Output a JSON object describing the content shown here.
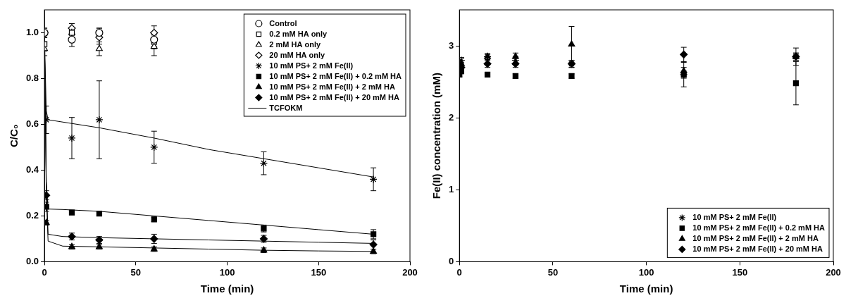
{
  "chart_data": [
    {
      "type": "scatter",
      "xlabel": "Time (min)",
      "ylabel": "C/C₀",
      "xlim": [
        0,
        200
      ],
      "xticks": [
        0,
        50,
        100,
        150,
        200
      ],
      "ylim": [
        0,
        1.1
      ],
      "yticks": [
        {
          "value": 0,
          "label": "0.0"
        },
        {
          "value": 0.2,
          "label": "0.2"
        },
        {
          "value": 0.4,
          "label": "0.4"
        },
        {
          "value": 0.6,
          "label": "0.6"
        },
        {
          "value": 0.8,
          "label": "0.8"
        },
        {
          "value": 1.0,
          "label": "1.0"
        }
      ],
      "grid": false,
      "legend": "upper right",
      "series": [
        {
          "name": "Control",
          "color": "#000000",
          "marker": "circle-open",
          "x": [
            0,
            15,
            30,
            60
          ],
          "values": [
            1.0,
            0.97,
            1.0,
            0.97
          ],
          "errors": [
            0.02,
            0.03,
            0.02,
            0.03
          ]
        },
        {
          "name": "0.2 mM HA only",
          "color": "#000000",
          "marker": "square-open",
          "x": [
            0,
            15,
            30,
            60
          ],
          "values": [
            0.95,
            1.0,
            1.0,
            0.96
          ],
          "errors": [
            0.03,
            0.02,
            0.02,
            0.03
          ]
        },
        {
          "name": "2 mM HA only",
          "color": "#000000",
          "marker": "triangle-open",
          "x": [
            0,
            15,
            30,
            60
          ],
          "values": [
            0.93,
            1.0,
            0.93,
            0.94
          ],
          "errors": [
            0.03,
            0.02,
            0.03,
            0.04
          ]
        },
        {
          "name": "20 mM HA only",
          "color": "#000000",
          "marker": "diamond-open",
          "x": [
            0,
            15,
            30,
            60
          ],
          "values": [
            1.0,
            1.02,
            0.98,
            1.0
          ],
          "errors": [
            0.02,
            0.02,
            0.03,
            0.03
          ]
        },
        {
          "name": "10 mM PS+ 2 mM Fe(II)",
          "color": "#000000",
          "marker": "star",
          "x": [
            0,
            1,
            15,
            30,
            60,
            120,
            180
          ],
          "values": [
            1.0,
            0.62,
            0.54,
            0.62,
            0.5,
            0.43,
            0.36
          ],
          "errors": [
            0.0,
            0.06,
            0.09,
            0.17,
            0.07,
            0.05,
            0.05
          ]
        },
        {
          "name": "10 mM PS+ 2 mM Fe(II) + 0.2 mM HA",
          "color": "#000000",
          "marker": "square",
          "x": [
            0,
            1,
            15,
            30,
            60,
            120,
            180
          ],
          "values": [
            1.0,
            0.24,
            0.215,
            0.21,
            0.185,
            0.145,
            0.12
          ],
          "errors": [
            0.0,
            0.02,
            0.01,
            0.01,
            0.01,
            0.015,
            0.02
          ]
        },
        {
          "name": "10 mM PS+ 2 mM Fe(II) + 2 mM HA",
          "color": "#000000",
          "marker": "triangle",
          "x": [
            0,
            1,
            15,
            30,
            60,
            120,
            180
          ],
          "values": [
            1.0,
            0.17,
            0.065,
            0.065,
            0.055,
            0.05,
            0.045
          ],
          "errors": [
            0.0,
            0.01,
            0.01,
            0.01,
            0.01,
            0.01,
            0.01
          ]
        },
        {
          "name": "10 mM PS+ 2 mM Fe(II) + 20 mM HA",
          "color": "#000000",
          "marker": "diamond",
          "x": [
            0,
            1,
            15,
            30,
            60,
            120,
            180
          ],
          "values": [
            1.0,
            0.29,
            0.11,
            0.095,
            0.1,
            0.1,
            0.075
          ],
          "errors": [
            0.0,
            0.02,
            0.015,
            0.015,
            0.02,
            0.015,
            0.02
          ]
        },
        {
          "name": "TCFOKM",
          "type": "line",
          "color": "#000000",
          "line_style": "solid",
          "x": [
            0,
            1,
            2,
            10,
            30,
            60,
            90,
            120,
            150,
            180,
            null,
            0,
            1,
            2,
            10,
            30,
            60,
            90,
            120,
            150,
            180,
            null,
            0,
            1,
            2,
            10,
            30,
            60,
            90,
            120,
            150,
            180,
            null,
            0,
            1,
            2,
            10,
            30,
            60,
            90,
            120,
            150,
            180
          ],
          "values": [
            1.0,
            0.66,
            0.62,
            0.61,
            0.585,
            0.54,
            0.49,
            0.45,
            0.41,
            0.37,
            null,
            1.0,
            0.35,
            0.23,
            0.228,
            0.22,
            0.2,
            0.18,
            0.16,
            0.14,
            0.12,
            null,
            1.0,
            0.3,
            0.09,
            0.068,
            0.065,
            0.06,
            0.055,
            0.05,
            0.047,
            0.045,
            null,
            1.0,
            0.35,
            0.12,
            0.11,
            0.105,
            0.1,
            0.095,
            0.09,
            0.085,
            0.08
          ]
        }
      ]
    },
    {
      "type": "scatter",
      "xlabel": "Time (min)",
      "ylabel": "Fe(II) concentration (mM)",
      "xlim": [
        0,
        200
      ],
      "xticks": [
        0,
        50,
        100,
        150,
        200
      ],
      "ylim": [
        0,
        3.5
      ],
      "yticks": [
        0,
        1,
        2,
        3
      ],
      "grid": false,
      "legend": "lower right",
      "series": [
        {
          "name": "10 mM PS+ 2 mM Fe(II)",
          "color": "#000000",
          "marker": "star",
          "x": [
            0,
            1,
            15,
            30,
            60,
            120,
            180
          ],
          "values": [
            2.65,
            2.8,
            2.85,
            2.8,
            2.75,
            2.6,
            2.85
          ],
          "errors": [
            0.03,
            0.04,
            0.04,
            0.05,
            0.05,
            0.05,
            0.05
          ]
        },
        {
          "name": "10 mM PS+ 2 mM Fe(II) + 0.2 mM HA",
          "color": "#000000",
          "marker": "square",
          "x": [
            0,
            1,
            15,
            30,
            60,
            120,
            180
          ],
          "values": [
            2.6,
            2.65,
            2.6,
            2.58,
            2.58,
            2.6,
            2.48
          ],
          "errors": [
            0.03,
            0.04,
            0.03,
            0.03,
            0.03,
            0.17,
            0.3
          ]
        },
        {
          "name": "10 mM PS+ 2 mM Fe(II) + 2 mM HA",
          "color": "#000000",
          "marker": "triangle",
          "x": [
            0,
            1,
            15,
            30,
            60,
            120,
            180
          ],
          "values": [
            2.65,
            2.75,
            2.85,
            2.85,
            3.02,
            2.65,
            2.85
          ],
          "errors": [
            0.03,
            0.05,
            0.04,
            0.05,
            0.25,
            0.05,
            0.05
          ]
        },
        {
          "name": "10 mM PS+ 2 mM Fe(II) + 20 mM HA",
          "color": "#000000",
          "marker": "diamond",
          "x": [
            0,
            1,
            15,
            30,
            60,
            120,
            180
          ],
          "values": [
            2.7,
            2.7,
            2.75,
            2.75,
            2.75,
            2.88,
            2.85
          ],
          "errors": [
            0.03,
            0.04,
            0.05,
            0.05,
            0.05,
            0.1,
            0.12
          ]
        }
      ]
    }
  ]
}
